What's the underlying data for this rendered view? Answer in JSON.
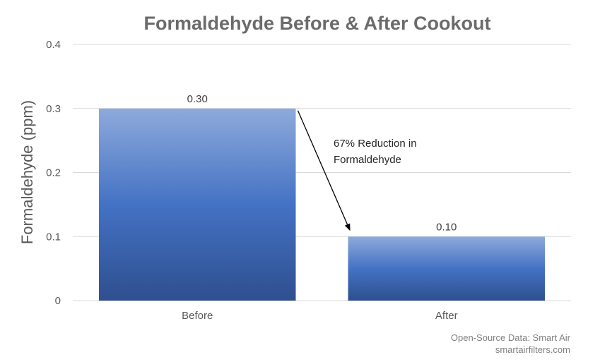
{
  "chart_data": {
    "type": "bar",
    "title": "Formaldehyde Before & After Cookout",
    "ylabel": "Formaldehyde (ppm)",
    "xlabel": "",
    "categories": [
      "Before",
      "After"
    ],
    "values": [
      0.3,
      0.1
    ],
    "value_labels": [
      "0.30",
      "0.10"
    ],
    "ylim": [
      0,
      0.4
    ],
    "yticks": [
      0,
      0.1,
      0.2,
      0.3,
      0.4
    ],
    "ytick_labels": [
      "0",
      "0.1",
      "0.2",
      "0.3",
      "0.4"
    ],
    "grid": true,
    "legend": "none",
    "annotation": {
      "lines": [
        "67% Reduction in",
        "Formaldehyde"
      ]
    },
    "colors": {
      "bar_top": "#8eaadb",
      "bar_mid": "#4472c4",
      "bar_bottom": "#2f4f8f",
      "grid": "#d9d9d9",
      "title": "#6b6b6b",
      "text": "#595959"
    }
  },
  "source": {
    "line1": "Open-Source Data: Smart Air",
    "line2": "smartairfilters.com"
  }
}
